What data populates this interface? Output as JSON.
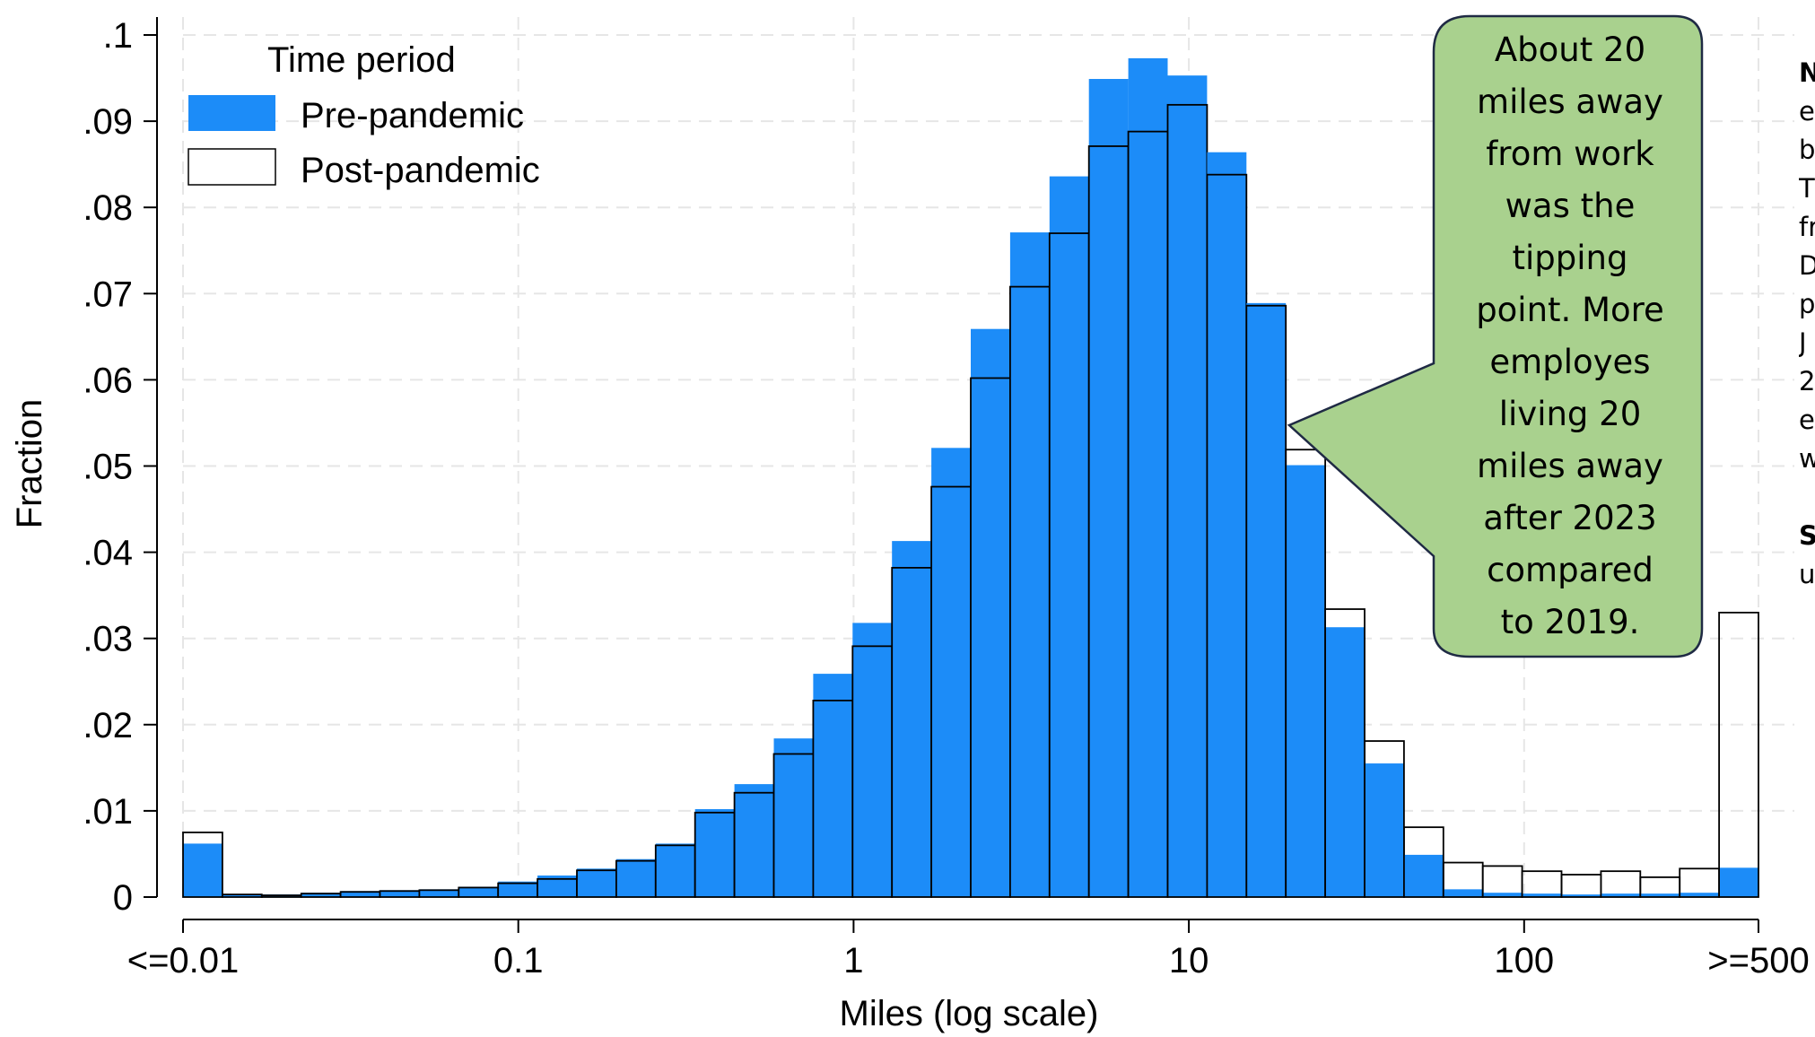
{
  "chart_data": {
    "type": "bar",
    "xlabel": "Miles (log scale)",
    "ylabel": "Fraction",
    "x_scale": "log",
    "y_ticks": [
      {
        "value": 0,
        "label": "0"
      },
      {
        "value": 0.01,
        "label": ".01"
      },
      {
        "value": 0.02,
        "label": ".02"
      },
      {
        "value": 0.03,
        "label": ".03"
      },
      {
        "value": 0.04,
        "label": ".04"
      },
      {
        "value": 0.05,
        "label": ".05"
      },
      {
        "value": 0.06,
        "label": ".06"
      },
      {
        "value": 0.07,
        "label": ".07"
      },
      {
        "value": 0.08,
        "label": ".08"
      },
      {
        "value": 0.09,
        "label": ".09"
      },
      {
        "value": 0.1,
        "label": ".1"
      }
    ],
    "x_ticks": [
      {
        "value": 0.01,
        "label": "<=0.01"
      },
      {
        "value": 0.1,
        "label": "0.1"
      },
      {
        "value": 1,
        "label": "1"
      },
      {
        "value": 10,
        "label": "10"
      },
      {
        "value": 100,
        "label": "100"
      },
      {
        "value": 500,
        "label": ">=500"
      }
    ],
    "ylim": [
      0,
      0.1
    ],
    "grid": true,
    "legend": {
      "title": "Time period",
      "position": "top-left"
    },
    "series": [
      {
        "name": "Pre-pandemic",
        "color": "#1c8cf8",
        "values": [
          0.0062,
          0.0003,
          0.0003,
          0.0005,
          0.0007,
          0.0008,
          0.0009,
          0.0012,
          0.0018,
          0.0025,
          0.0033,
          0.0044,
          0.0062,
          0.0102,
          0.0131,
          0.0184,
          0.0259,
          0.0318,
          0.0413,
          0.0521,
          0.0659,
          0.0771,
          0.0836,
          0.0949,
          0.0973,
          0.0953,
          0.0864,
          0.0689,
          0.0501,
          0.0313,
          0.0155,
          0.0049,
          0.0009,
          0.0005,
          0.0004,
          0.0003,
          0.0004,
          0.0004,
          0.0005,
          0.0034
        ]
      },
      {
        "name": "Post-pandemic",
        "color": "#ffffff",
        "values": [
          0.0075,
          0.0003,
          0.0002,
          0.0004,
          0.0006,
          0.0007,
          0.0008,
          0.0011,
          0.0016,
          0.0021,
          0.0031,
          0.0042,
          0.006,
          0.0098,
          0.0121,
          0.0166,
          0.0228,
          0.0291,
          0.0382,
          0.0476,
          0.0602,
          0.0708,
          0.077,
          0.0871,
          0.0888,
          0.0919,
          0.0838,
          0.0686,
          0.0519,
          0.0334,
          0.0181,
          0.0081,
          0.004,
          0.0036,
          0.003,
          0.0026,
          0.003,
          0.0023,
          0.0033,
          0.033
        ]
      }
    ]
  },
  "callout": {
    "lines": [
      "About 20",
      "miles away",
      "from work",
      "was the",
      "tipping",
      "point. More",
      "employes",
      "living 20",
      "miles away",
      "after 2023",
      "compared",
      "to 2019."
    ]
  },
  "note": {
    "lines": [
      "N",
      "e",
      "b",
      "T",
      "fr",
      "D",
      "p",
      "J",
      "2",
      "e",
      "w",
      "",
      "S",
      "u"
    ]
  }
}
